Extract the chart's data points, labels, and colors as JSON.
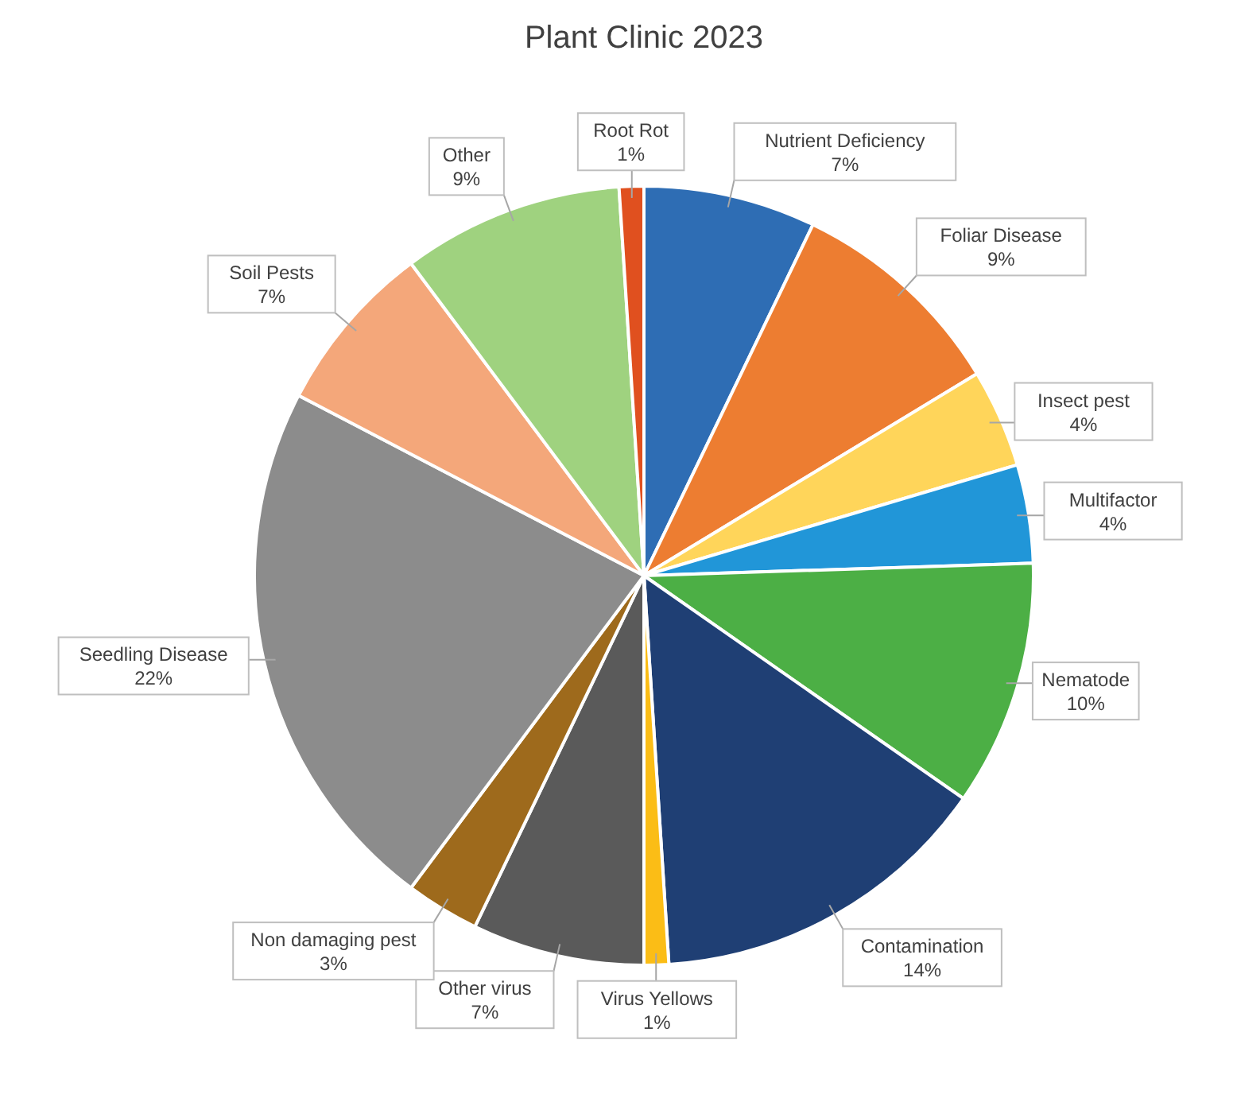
{
  "chart_data": {
    "type": "pie",
    "title": "Plant Clinic 2023",
    "categories": [
      "Nutrient Deficiency",
      "Foliar Disease",
      "Insect pest",
      "Multifactor",
      "Nematode",
      "Contamination",
      "Virus Yellows",
      "Other virus",
      "Non damaging pest",
      "Seedling Disease",
      "Soil Pests",
      "Other",
      "Root Rot"
    ],
    "values": [
      7,
      9,
      4,
      4,
      10,
      14,
      1,
      7,
      3,
      22,
      7,
      9,
      1
    ],
    "value_labels": [
      "7%",
      "9%",
      "4%",
      "4%",
      "10%",
      "14%",
      "1%",
      "7%",
      "3%",
      "22%",
      "7%",
      "9%",
      "1%"
    ],
    "colors": [
      "#2e6db4",
      "#ed7d31",
      "#ffd55a",
      "#2196d8",
      "#4caf45",
      "#1f3f74",
      "#fbbd16",
      "#5a5a5a",
      "#9e6a1c",
      "#8c8c8c",
      "#f4a77a",
      "#9fd27f",
      "#e0501f"
    ]
  }
}
